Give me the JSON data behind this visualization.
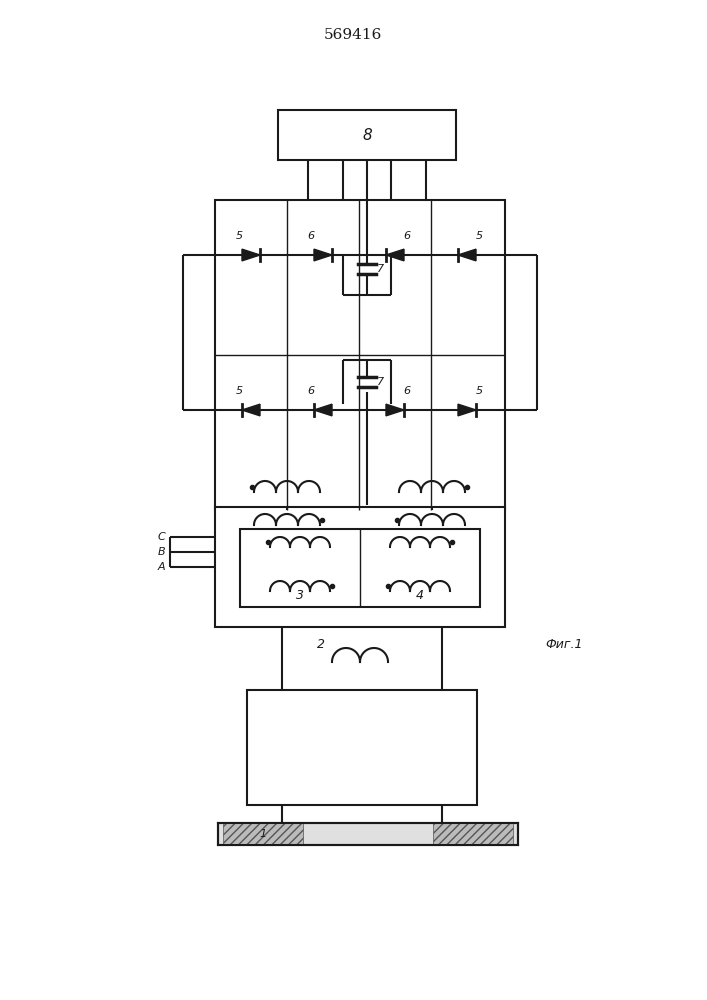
{
  "title": "569416",
  "fig_label": "Фиг.1",
  "background_color": "#ffffff",
  "line_color": "#1a1a1a",
  "lw": 1.5,
  "tlw": 1.0,
  "figsize": [
    7.07,
    10.0
  ],
  "dpi": 100,
  "labels": {
    "1": "1",
    "2": "2",
    "3": "3",
    "4": "4",
    "5": "5",
    "6": "6",
    "7": "7",
    "8": "8",
    "A": "A",
    "B": "B",
    "C": "C"
  }
}
